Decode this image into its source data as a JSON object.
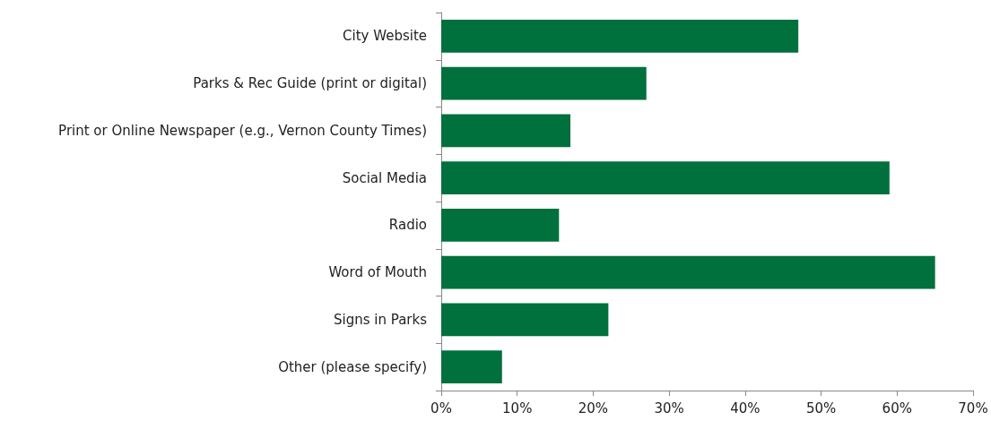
{
  "chart_data": {
    "type": "bar",
    "orientation": "horizontal",
    "categories": [
      "City Website",
      "Parks & Rec Guide (print or digital)",
      "Print or Online Newspaper (e.g., Vernon County Times)",
      "Social Media",
      "Radio",
      "Word of Mouth",
      "Signs in Parks",
      "Other (please specify)"
    ],
    "values": [
      47,
      27,
      17,
      59,
      15.5,
      65,
      22,
      8
    ],
    "color": "#00703c",
    "xlim": [
      0,
      70
    ],
    "xticks": [
      {
        "value": 0,
        "label": "0%"
      },
      {
        "value": 10,
        "label": "10%"
      },
      {
        "value": 20,
        "label": "20%"
      },
      {
        "value": 30,
        "label": "30%"
      },
      {
        "value": 40,
        "label": "40%"
      },
      {
        "value": 50,
        "label": "50%"
      },
      {
        "value": 60,
        "label": "60%"
      },
      {
        "value": 70,
        "label": "70%"
      }
    ],
    "grid": false
  }
}
